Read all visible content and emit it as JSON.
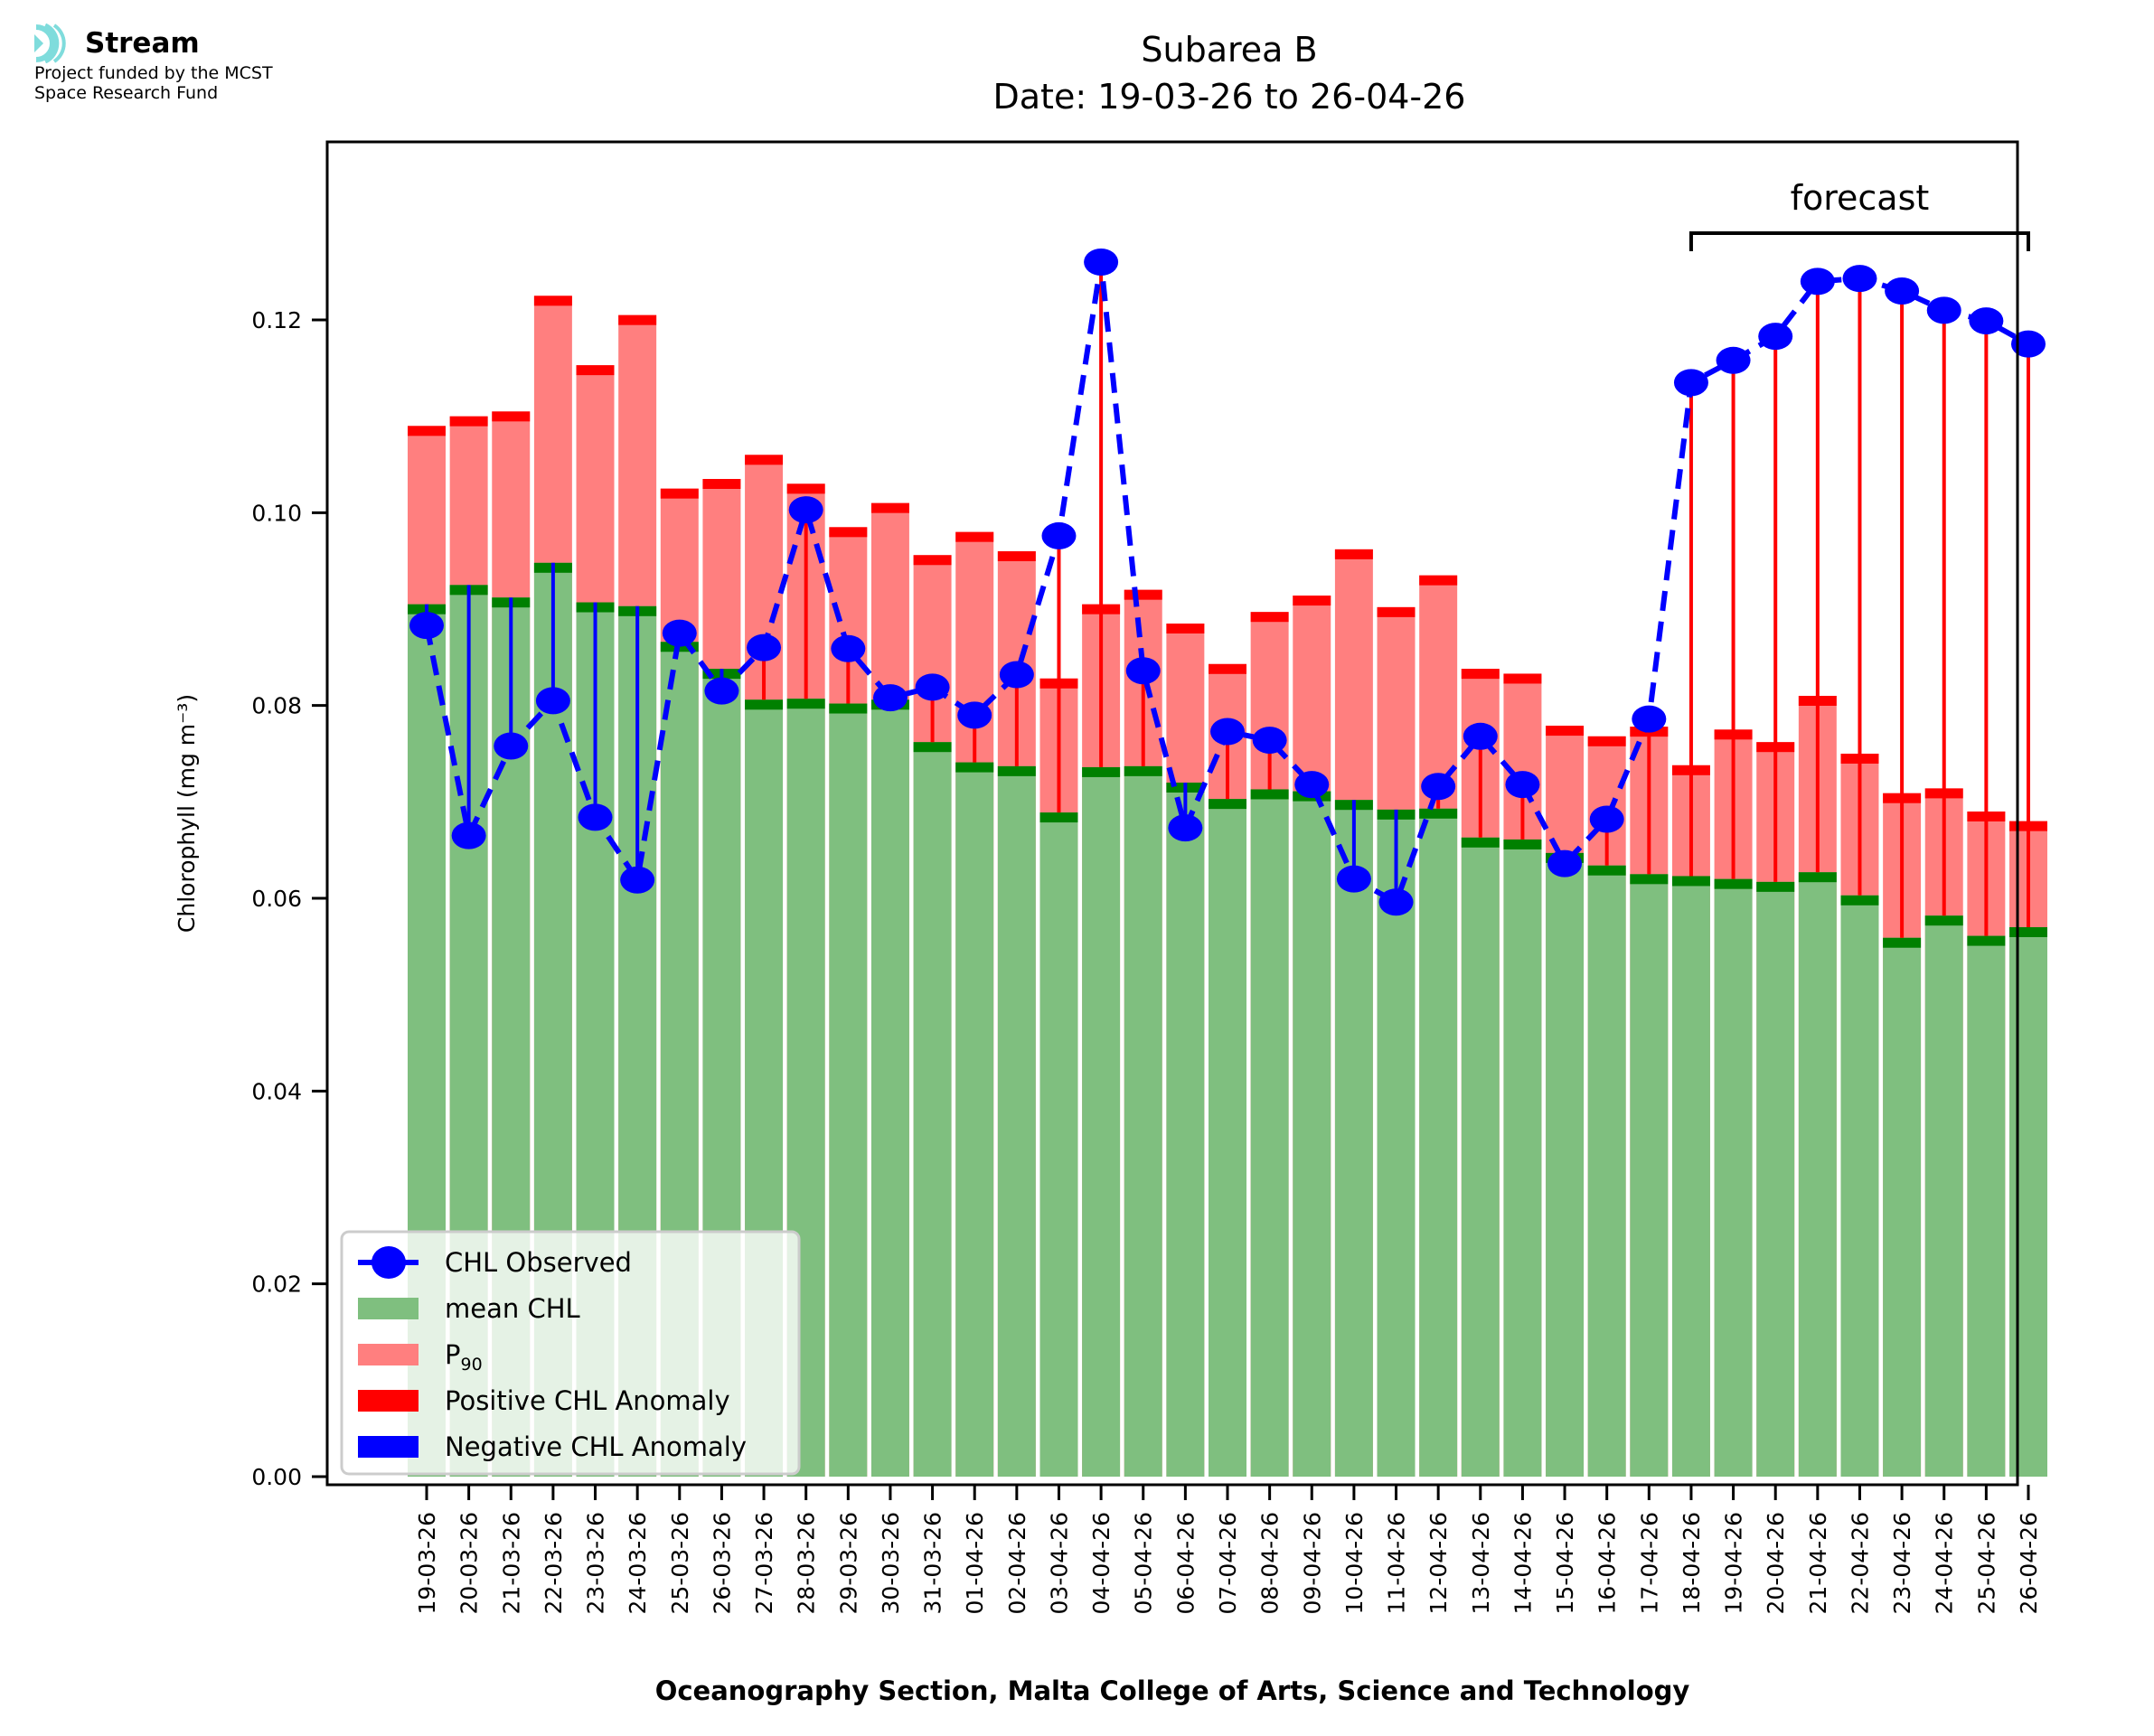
{
  "logo": {
    "name": "Stream",
    "line1": "Project funded by the MCST",
    "line2": "Space Research Fund",
    "icon": "stream-waves-icon",
    "icon_color": "#7fdcdc"
  },
  "chart_data": {
    "type": "bar",
    "title": "Subarea B",
    "subtitle": "Date: 19-03-26 to 26-04-26",
    "xlabel": "Oceanography Section, Malta College of Arts, Science and Technology",
    "ylabel": "Chlorophyll (mg m⁻³)",
    "ylim": [
      0,
      0.138
    ],
    "yticks": [
      0.0,
      0.02,
      0.04,
      0.06,
      0.08,
      0.1,
      0.12
    ],
    "ytick_labels": [
      "0.00",
      "0.02",
      "0.04",
      "0.06",
      "0.08",
      "0.10",
      "0.12"
    ],
    "grid": false,
    "legend_position": "bottom-left",
    "annotation": {
      "text": "forecast",
      "from": "18-04-26",
      "to": "26-04-26"
    },
    "colors": {
      "observed": "#0000ff",
      "mean": "#7fbf7f",
      "mean_line": "#008000",
      "p90": "#ff7f7f",
      "p90_line": "#ff0000",
      "positive_anomaly": "#ff0000",
      "negative_anomaly": "#0000ff"
    },
    "legend": [
      {
        "label": "CHL Observed",
        "kind": "line-marker",
        "color": "#0000ff"
      },
      {
        "label": "mean CHL",
        "kind": "patch",
        "color": "#7fbf7f"
      },
      {
        "label": "P",
        "sub": "90",
        "kind": "patch",
        "color": "#ff7f7f"
      },
      {
        "label": "Positive CHL Anomaly",
        "kind": "patch",
        "color": "#ff0000"
      },
      {
        "label": "Negative CHL Anomaly",
        "kind": "patch",
        "color": "#0000ff"
      }
    ],
    "categories": [
      "19-03-26",
      "20-03-26",
      "21-03-26",
      "22-03-26",
      "23-03-26",
      "24-03-26",
      "25-03-26",
      "26-03-26",
      "27-03-26",
      "28-03-26",
      "29-03-26",
      "30-03-26",
      "31-03-26",
      "01-04-26",
      "02-04-26",
      "03-04-26",
      "04-04-26",
      "05-04-26",
      "06-04-26",
      "07-04-26",
      "08-04-26",
      "09-04-26",
      "10-04-26",
      "11-04-26",
      "12-04-26",
      "13-04-26",
      "14-04-26",
      "15-04-26",
      "16-04-26",
      "17-04-26",
      "18-04-26",
      "19-04-26",
      "20-04-26",
      "21-04-26",
      "22-04-26",
      "23-04-26",
      "24-04-26",
      "25-04-26",
      "26-04-26"
    ],
    "series": [
      {
        "name": "mean CHL",
        "values": [
          0.0905,
          0.0925,
          0.0912,
          0.0948,
          0.0907,
          0.0903,
          0.0866,
          0.0838,
          0.0806,
          0.0807,
          0.0802,
          0.0806,
          0.0762,
          0.0741,
          0.0737,
          0.0689,
          0.0736,
          0.0737,
          0.072,
          0.0703,
          0.0713,
          0.0711,
          0.0702,
          0.0692,
          0.0693,
          0.0663,
          0.0661,
          0.0647,
          0.0634,
          0.0625,
          0.0623,
          0.062,
          0.0617,
          0.0627,
          0.0603,
          0.0559,
          0.0582,
          0.0561,
          0.057
        ]
      },
      {
        "name": "P90",
        "values": [
          0.109,
          0.11,
          0.1105,
          0.1225,
          0.1153,
          0.1205,
          0.1025,
          0.1035,
          0.106,
          0.103,
          0.0985,
          0.101,
          0.0956,
          0.098,
          0.096,
          0.0828,
          0.0905,
          0.092,
          0.0885,
          0.0843,
          0.0897,
          0.0914,
          0.0962,
          0.0902,
          0.0935,
          0.0838,
          0.0833,
          0.0779,
          0.0768,
          0.0778,
          0.0738,
          0.0775,
          0.0762,
          0.081,
          0.075,
          0.0709,
          0.0714,
          0.069,
          0.068
        ]
      },
      {
        "name": "CHL Observed",
        "values": [
          0.0883,
          0.0665,
          0.0758,
          0.0805,
          0.0684,
          0.0619,
          0.0875,
          0.0815,
          0.086,
          0.1003,
          0.0859,
          0.0808,
          0.0819,
          0.079,
          0.0832,
          0.0976,
          0.126,
          0.0836,
          0.0673,
          0.0773,
          0.0764,
          0.0718,
          0.062,
          0.0596,
          0.0716,
          0.0768,
          0.0718,
          0.0636,
          0.0682,
          0.0786,
          0.1135,
          0.1158,
          0.1183,
          0.124,
          0.1243,
          0.123,
          0.121,
          0.1199,
          0.1175
        ]
      }
    ]
  }
}
